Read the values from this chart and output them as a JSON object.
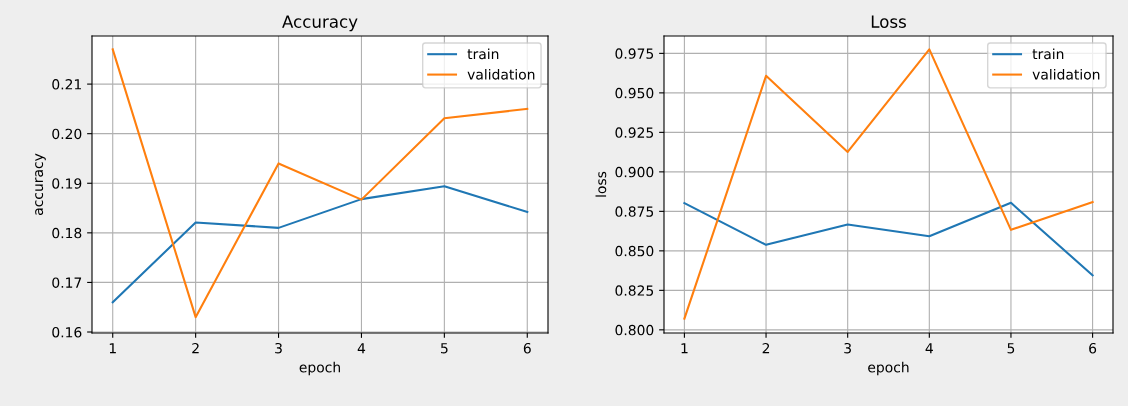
{
  "chart_data": [
    {
      "type": "line",
      "title": "Accuracy",
      "xlabel": "epoch",
      "ylabel": "accuracy",
      "x": [
        1,
        2,
        3,
        4,
        5,
        6
      ],
      "series": [
        {
          "name": "train",
          "color": "#1f77b4",
          "values": [
            0.166,
            0.1821,
            0.181,
            0.1868,
            0.1894,
            0.1842
          ]
        },
        {
          "name": "validation",
          "color": "#ff7f0e",
          "values": [
            0.217,
            0.163,
            0.194,
            0.1867,
            0.2031,
            0.205
          ]
        }
      ],
      "xlim": [
        0.75,
        6.25
      ],
      "xticks": [
        1,
        2,
        3,
        4,
        5,
        6
      ],
      "ylim": [
        0.1598,
        0.2197
      ],
      "yticks": [
        0.16,
        0.17,
        0.18,
        0.19,
        {
          "value": 0.2,
          "label": "0.20"
        },
        0.21
      ],
      "grid": true,
      "legend": "top right"
    },
    {
      "type": "line",
      "title": "Loss",
      "xlabel": "epoch",
      "ylabel": "loss",
      "x": [
        1,
        2,
        3,
        4,
        5,
        6
      ],
      "series": [
        {
          "name": "train",
          "color": "#1f77b4",
          "values": [
            0.8802,
            0.8538,
            0.8667,
            0.8592,
            0.8804,
            0.8345
          ]
        },
        {
          "name": "validation",
          "color": "#ff7f0e",
          "values": [
            0.8071,
            0.9608,
            0.9126,
            0.9775,
            0.8633,
            0.8808
          ]
        }
      ],
      "xlim": [
        0.75,
        6.25
      ],
      "xticks": [
        1,
        2,
        3,
        4,
        5,
        6
      ],
      "ylim": [
        0.798,
        0.986
      ],
      "yticks": [
        {
          "value": 0.8,
          "label": "0.800"
        },
        0.825,
        {
          "value": 0.85,
          "label": "0.850"
        },
        0.875,
        {
          "value": 0.9,
          "label": "0.900"
        },
        0.925,
        {
          "value": 0.95,
          "label": "0.950"
        },
        0.975
      ],
      "grid": true,
      "legend": "top right"
    }
  ]
}
